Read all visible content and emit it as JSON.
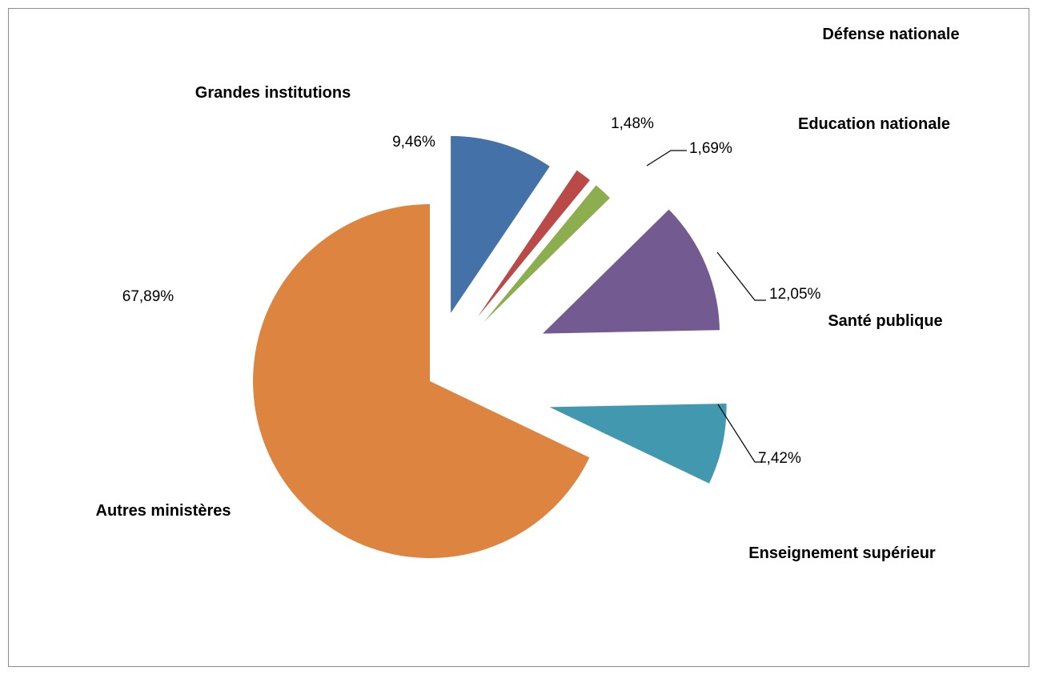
{
  "chart_data": {
    "type": "pie",
    "title": "",
    "slices": [
      {
        "label": "Grandes institutions",
        "value": 9.46,
        "value_label": "9,46%",
        "color": "#4472A8"
      },
      {
        "label": "Défense nationale",
        "value": 1.48,
        "value_label": "1,48%",
        "color": "#B94A48"
      },
      {
        "label": "Education nationale",
        "value": 1.69,
        "value_label": "1,69%",
        "color": "#8DAE4F"
      },
      {
        "label": "Santé publique",
        "value": 12.05,
        "value_label": "12,05%",
        "color": "#735A90"
      },
      {
        "label": "Enseignement supérieur",
        "value": 7.42,
        "value_label": "7,42%",
        "color": "#4298AE"
      },
      {
        "label": "Autres ministères",
        "value": 67.89,
        "value_label": "67,89%",
        "color": "#DC8440"
      }
    ]
  }
}
